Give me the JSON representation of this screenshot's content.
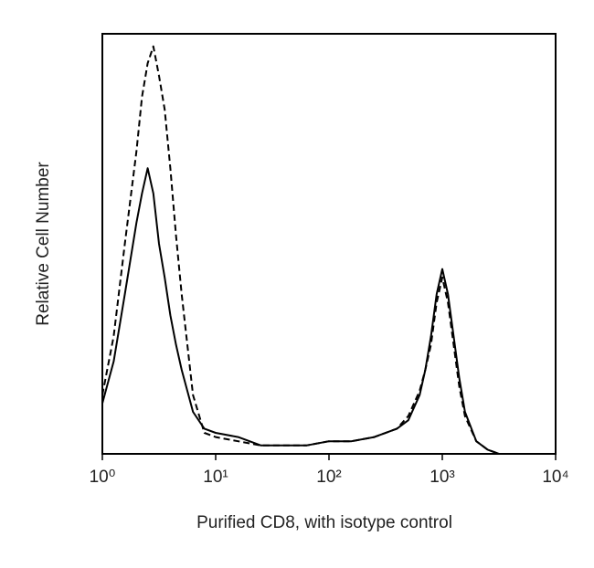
{
  "chart_data": {
    "type": "line",
    "xlabel": "Purified CD8, with isotype control",
    "ylabel": "Relative Cell Number",
    "xscale": "log",
    "xlim": [
      1,
      10000
    ],
    "xticks": [
      {
        "value": 1,
        "label": "10⁰"
      },
      {
        "value": 10,
        "label": "10¹"
      },
      {
        "value": 100,
        "label": "10²"
      },
      {
        "value": 1000,
        "label": "10³"
      },
      {
        "value": 10000,
        "label": "10⁴"
      }
    ],
    "ylim": [
      0,
      100
    ],
    "x": [
      1,
      1.26,
      1.58,
      2,
      2.24,
      2.51,
      2.82,
      3.16,
      3.55,
      3.98,
      4.47,
      5.01,
      6.31,
      7.94,
      10,
      15.8,
      25.1,
      39.8,
      63.1,
      100,
      158,
      251,
      398,
      501,
      631,
      708,
      794,
      891,
      1000,
      1122,
      1259,
      1413,
      1585,
      1995,
      2512,
      3162
    ],
    "series": [
      {
        "color": "#000000",
        "line_style": "solid",
        "values": [
          12,
          22,
          38,
          55,
          62,
          68,
          62,
          50,
          42,
          33,
          26,
          20,
          10,
          6,
          5,
          4,
          2,
          2,
          2,
          3,
          3,
          4,
          6,
          8,
          14,
          20,
          28,
          38,
          44,
          38,
          28,
          18,
          10,
          3,
          1,
          0
        ]
      },
      {
        "color": "#000000",
        "line_style": "dashed",
        "values": [
          14,
          28,
          50,
          72,
          85,
          93,
          97,
          90,
          82,
          68,
          52,
          38,
          14,
          5,
          4,
          3,
          2,
          2,
          2,
          3,
          3,
          4,
          6,
          9,
          15,
          20,
          26,
          36,
          42,
          36,
          26,
          16,
          9,
          3,
          1,
          0
        ]
      }
    ]
  }
}
